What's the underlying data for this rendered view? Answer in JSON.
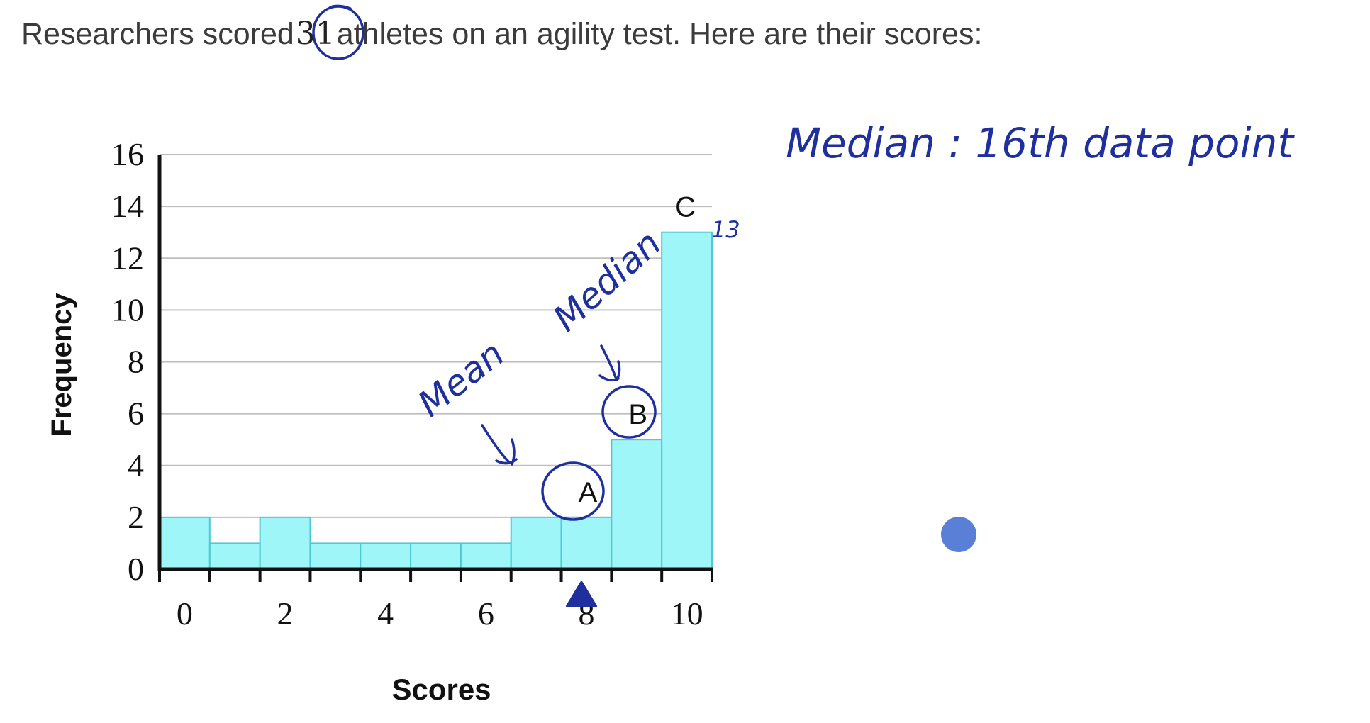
{
  "prompt": {
    "before": "Researchers scored",
    "count": "31",
    "after": "athletes on an agility test. Here are their scores:"
  },
  "chart_data": {
    "type": "bar",
    "title": "",
    "xlabel": "Scores",
    "ylabel": "Frequency",
    "x": [
      0,
      1,
      2,
      3,
      4,
      5,
      6,
      7,
      8,
      9,
      10
    ],
    "values": [
      2,
      1,
      2,
      1,
      1,
      1,
      1,
      2,
      2,
      5,
      13
    ],
    "xlim": [
      -0.5,
      10.5
    ],
    "ylim": [
      0,
      16
    ],
    "yticks": [
      0,
      2,
      4,
      6,
      8,
      10,
      12,
      14,
      16
    ],
    "xtick_labels": [
      0,
      2,
      4,
      6,
      8,
      10
    ],
    "grid": "horizontal",
    "bar_color": "#9ef6f9",
    "bar_edge_color": "#50c8cf",
    "point_labels": [
      {
        "text": "A",
        "x": 8
      },
      {
        "text": "B",
        "x": 9
      },
      {
        "text": "C",
        "x": 10
      }
    ]
  },
  "annotations": {
    "ink_color": "#1f2f9e",
    "mean_note": "Mean",
    "median_note": "Median",
    "count_note": "13",
    "side_note": "Median : 16th data point"
  },
  "cursor_color": "#5a7fd6"
}
